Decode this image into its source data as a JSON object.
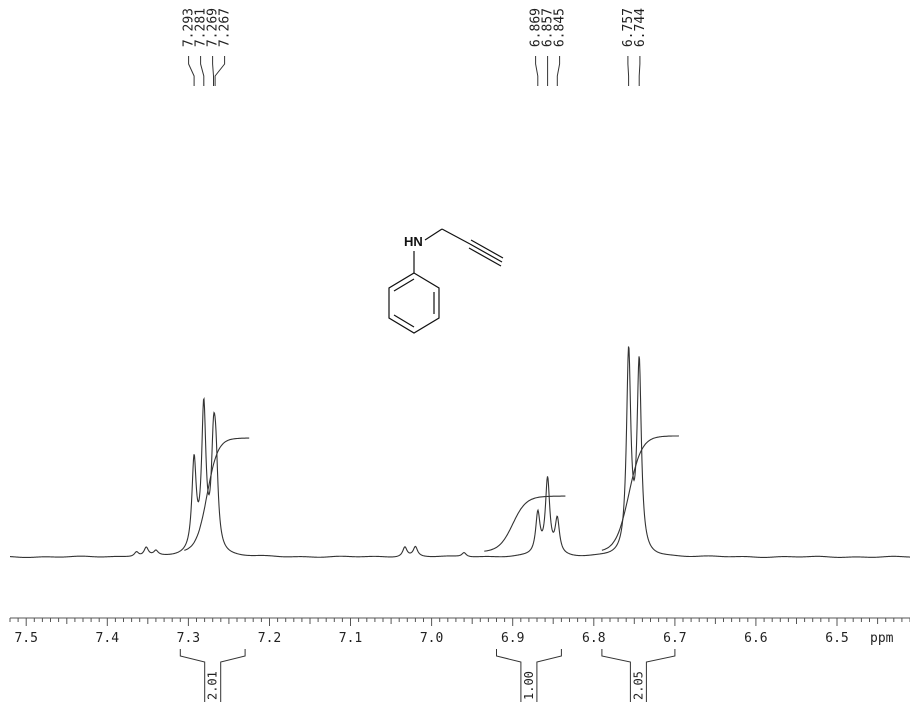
{
  "chart_data": {
    "type": "line",
    "title": "",
    "xlabel": "ppm",
    "ylabel": "",
    "xlim": [
      7.52,
      6.41
    ],
    "x_reversed": true,
    "ticks": [
      {
        "value": 7.5,
        "label": "7.5"
      },
      {
        "value": 7.4,
        "label": "7.4"
      },
      {
        "value": 7.3,
        "label": "7.3"
      },
      {
        "value": 7.2,
        "label": "7.2"
      },
      {
        "value": 7.1,
        "label": "7.1"
      },
      {
        "value": 7.0,
        "label": "7.0"
      },
      {
        "value": 6.9,
        "label": "6.9"
      },
      {
        "value": 6.8,
        "label": "6.8"
      },
      {
        "value": 6.7,
        "label": "6.7"
      },
      {
        "value": 6.6,
        "label": "6.6"
      },
      {
        "value": 6.5,
        "label": "6.5"
      }
    ],
    "peak_groups": [
      {
        "labels": [
          "7.293",
          "7.281",
          "7.269",
          "7.267"
        ],
        "shifts": [
          7.293,
          7.281,
          7.269,
          7.267
        ]
      },
      {
        "labels": [
          "6.869",
          "6.857",
          "6.845"
        ],
        "shifts": [
          6.869,
          6.857,
          6.845
        ]
      },
      {
        "labels": [
          "6.757",
          "6.744"
        ],
        "shifts": [
          6.757,
          6.744
        ]
      }
    ],
    "integrals": [
      {
        "from": 7.31,
        "to": 7.23,
        "value": "2.01"
      },
      {
        "from": 6.92,
        "to": 6.84,
        "value": "1.00"
      },
      {
        "from": 6.79,
        "to": 6.7,
        "value": "2.05"
      }
    ],
    "signals": [
      {
        "shift": 7.293,
        "height": 0.42
      },
      {
        "shift": 7.281,
        "height": 0.67
      },
      {
        "shift": 7.269,
        "height": 0.43
      },
      {
        "shift": 7.266,
        "height": 0.33
      },
      {
        "shift": 7.364,
        "height": 0.022
      },
      {
        "shift": 7.352,
        "height": 0.04
      },
      {
        "shift": 7.34,
        "height": 0.022
      },
      {
        "shift": 7.033,
        "height": 0.045
      },
      {
        "shift": 7.02,
        "height": 0.045
      },
      {
        "shift": 6.96,
        "height": 0.02
      },
      {
        "shift": 6.869,
        "height": 0.19
      },
      {
        "shift": 6.857,
        "height": 0.35
      },
      {
        "shift": 6.845,
        "height": 0.16
      },
      {
        "shift": 6.757,
        "height": 0.93
      },
      {
        "shift": 6.744,
        "height": 0.88
      }
    ],
    "integral_curves": [
      {
        "from": 7.305,
        "to": 7.225,
        "rise": 0.53
      },
      {
        "from": 6.935,
        "to": 6.835,
        "rise": 0.26
      },
      {
        "from": 6.79,
        "to": 6.695,
        "rise": 0.54
      }
    ],
    "structure": {
      "atom_label": "HN",
      "name": "N-propargylaniline"
    }
  }
}
